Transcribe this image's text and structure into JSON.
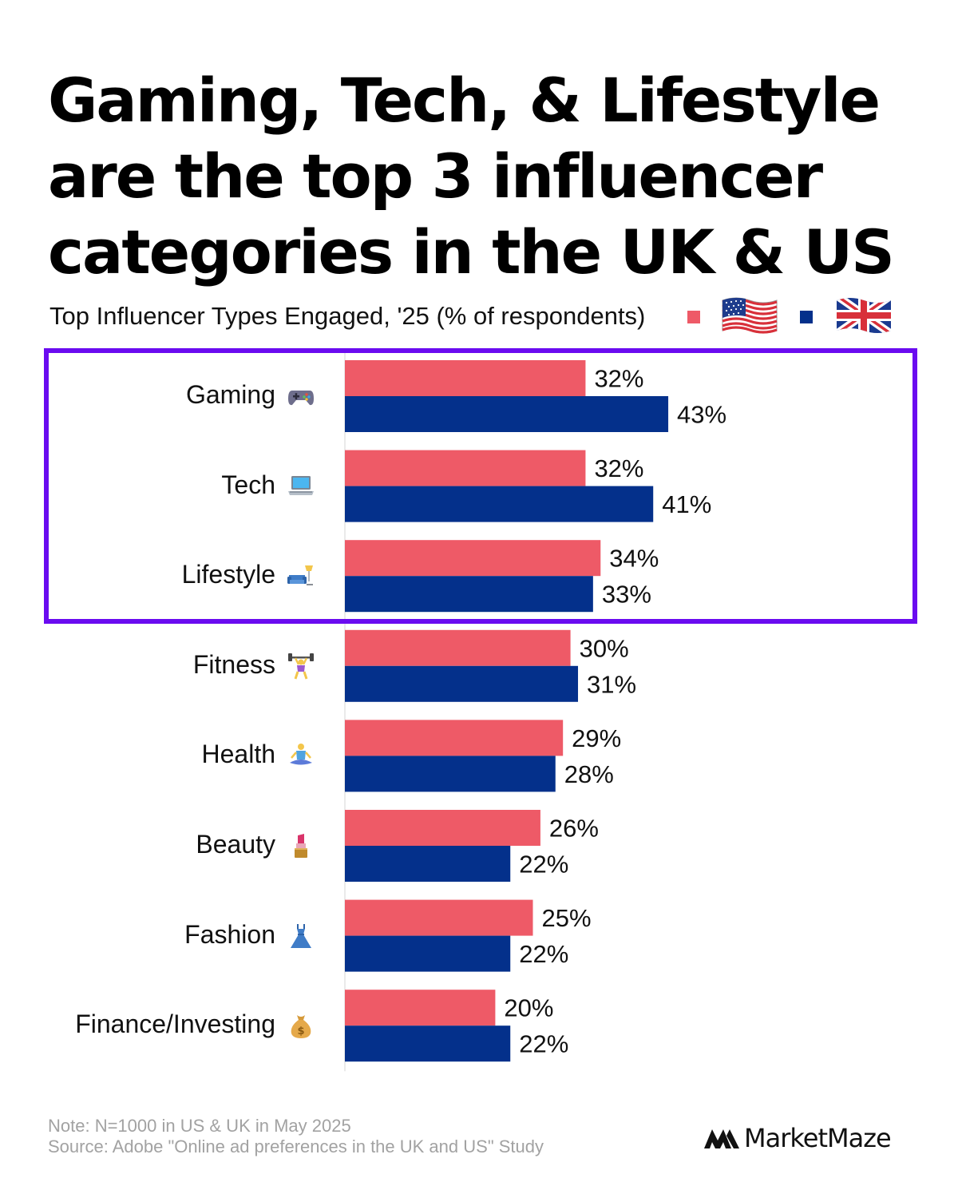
{
  "title": {
    "line1": "Gaming, Tech, & Lifestyle",
    "line2": "are the top 3 influencer",
    "line3": "categories in the UK & US"
  },
  "subtitle": "Top Influencer Types Engaged, '25 (% of respondents)",
  "colors": {
    "us": "#EE5A67",
    "uk": "#04308B",
    "highlight": "#6A0BF0"
  },
  "chart_data": {
    "type": "bar",
    "orientation": "horizontal",
    "categories": [
      "Gaming",
      "Tech",
      "Lifestyle",
      "Fitness",
      "Health",
      "Beauty",
      "Fashion",
      "Finance/Investing"
    ],
    "category_icons": [
      "game-controller-icon",
      "laptop-icon",
      "couch-and-lamp-icon",
      "weightlifter-icon",
      "meditation-icon",
      "lipstick-icon",
      "dress-icon",
      "money-bag-icon"
    ],
    "series": [
      {
        "key": "us",
        "legend_icon": "us-flag-icon",
        "color": "#EE5A67",
        "values": [
          32,
          32,
          34,
          30,
          29,
          26,
          25,
          20
        ]
      },
      {
        "key": "uk",
        "legend_icon": "uk-flag-icon",
        "color": "#04308B",
        "values": [
          43,
          41,
          33,
          31,
          28,
          22,
          22,
          22
        ]
      }
    ],
    "value_suffix": "%",
    "highlighted_categories": [
      "Gaming",
      "Tech",
      "Lifestyle"
    ],
    "legend_position": "top-right",
    "grid": false
  },
  "footer": {
    "note": "Note: N=1000 in US & UK in May 2025",
    "source": "Source: Adobe \"Online ad preferences in the UK and US\" Study"
  },
  "brand": "MarketMaze"
}
